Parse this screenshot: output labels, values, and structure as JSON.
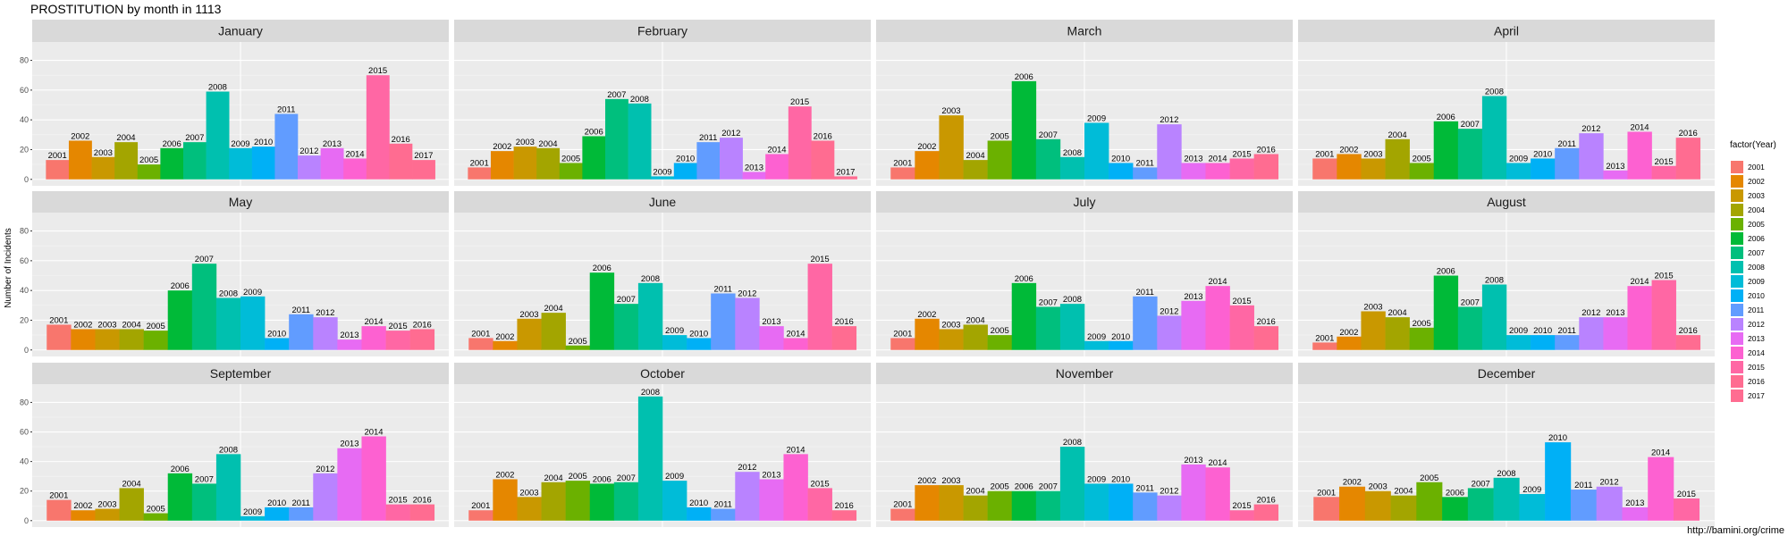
{
  "chart_data": {
    "type": "bar",
    "title": "PROSTITUTION by month in 1113",
    "xlabel": "",
    "ylabel": "Number of Incidents",
    "ylim": [
      0,
      88
    ],
    "yticks": [
      0,
      20,
      40,
      60,
      80
    ],
    "grid": true,
    "legend_title": "factor(Year)",
    "legend_position": "right",
    "caption": "http://bamini.org/crime",
    "years": [
      "2001",
      "2002",
      "2003",
      "2004",
      "2005",
      "2006",
      "2007",
      "2008",
      "2009",
      "2010",
      "2011",
      "2012",
      "2013",
      "2014",
      "2015",
      "2016",
      "2017"
    ],
    "colors": [
      "#F8766D",
      "#E58700",
      "#C99800",
      "#A3A500",
      "#6BB100",
      "#00BA38",
      "#00BF7D",
      "#00C0AF",
      "#00BCD8",
      "#00B0F6",
      "#619CFF",
      "#B983FF",
      "#E76BF3",
      "#FD61D1",
      "#FF67A4",
      "#FF6C91",
      "#FF6C91"
    ],
    "panels": [
      {
        "month": "January",
        "categories": [
          "2001",
          "2002",
          "2003",
          "2004",
          "2005",
          "2006",
          "2007",
          "2008",
          "2009",
          "2010",
          "2011",
          "2012",
          "2013",
          "2014",
          "2015",
          "2016",
          "2017"
        ],
        "values": [
          13,
          26,
          15,
          25,
          10,
          21,
          25,
          59,
          21,
          22,
          44,
          16,
          21,
          14,
          70,
          24,
          13
        ]
      },
      {
        "month": "February",
        "categories": [
          "2001",
          "2002",
          "2003",
          "2004",
          "2005",
          "2006",
          "2007",
          "2008",
          "2009",
          "2010",
          "2011",
          "2012",
          "2013",
          "2014",
          "2015",
          "2016",
          "2017"
        ],
        "values": [
          8,
          19,
          22,
          21,
          11,
          29,
          54,
          51,
          2,
          11,
          25,
          28,
          5,
          17,
          49,
          26,
          2
        ]
      },
      {
        "month": "March",
        "categories": [
          "2001",
          "2002",
          "2003",
          "2004",
          "2005",
          "2006",
          "2007",
          "2008",
          "2009",
          "2010",
          "2011",
          "2012",
          "2013",
          "2014",
          "2015",
          "2016"
        ],
        "values": [
          8,
          19,
          43,
          13,
          26,
          66,
          27,
          15,
          38,
          11,
          8,
          37,
          11,
          11,
          14,
          17
        ]
      },
      {
        "month": "April",
        "categories": [
          "2001",
          "2002",
          "2003",
          "2004",
          "2005",
          "2006",
          "2007",
          "2008",
          "2009",
          "2010",
          "2011",
          "2012",
          "2013",
          "2014",
          "2015",
          "2016"
        ],
        "values": [
          14,
          17,
          14,
          27,
          11,
          39,
          34,
          56,
          11,
          14,
          21,
          31,
          6,
          32,
          9,
          28
        ]
      },
      {
        "month": "May",
        "categories": [
          "2001",
          "2002",
          "2003",
          "2004",
          "2005",
          "2006",
          "2007",
          "2008",
          "2009",
          "2010",
          "2011",
          "2012",
          "2013",
          "2014",
          "2015",
          "2016"
        ],
        "values": [
          17,
          14,
          14,
          14,
          13,
          40,
          58,
          35,
          36,
          8,
          24,
          22,
          7,
          16,
          13,
          14
        ]
      },
      {
        "month": "June",
        "categories": [
          "2001",
          "2002",
          "2003",
          "2004",
          "2005",
          "2006",
          "2007",
          "2008",
          "2009",
          "2010",
          "2011",
          "2012",
          "2013",
          "2014",
          "2015",
          "2016"
        ],
        "values": [
          8,
          6,
          21,
          25,
          3,
          52,
          31,
          45,
          10,
          8,
          38,
          35,
          16,
          8,
          58,
          16
        ]
      },
      {
        "month": "July",
        "categories": [
          "2001",
          "2002",
          "2003",
          "2004",
          "2005",
          "2006",
          "2007",
          "2008",
          "2009",
          "2010",
          "2011",
          "2012",
          "2013",
          "2014",
          "2015",
          "2016"
        ],
        "values": [
          8,
          21,
          14,
          17,
          10,
          45,
          29,
          31,
          6,
          6,
          36,
          23,
          33,
          43,
          30,
          16
        ]
      },
      {
        "month": "August",
        "categories": [
          "2001",
          "2002",
          "2003",
          "2004",
          "2005",
          "2006",
          "2007",
          "2008",
          "2009",
          "2010",
          "2011",
          "2012",
          "2013",
          "2014",
          "2015",
          "2016"
        ],
        "values": [
          5,
          9,
          26,
          22,
          15,
          50,
          29,
          44,
          10,
          10,
          10,
          22,
          22,
          43,
          47,
          10
        ]
      },
      {
        "month": "September",
        "categories": [
          "2001",
          "2002",
          "2003",
          "2004",
          "2005",
          "2006",
          "2007",
          "2008",
          "2009",
          "2010",
          "2011",
          "2012",
          "2013",
          "2014",
          "2015",
          "2016"
        ],
        "values": [
          14,
          7,
          8,
          22,
          5,
          32,
          25,
          45,
          3,
          9,
          9,
          32,
          49,
          57,
          11,
          11
        ]
      },
      {
        "month": "October",
        "categories": [
          "2001",
          "2002",
          "2003",
          "2004",
          "2005",
          "2006",
          "2007",
          "2008",
          "2009",
          "2010",
          "2011",
          "2012",
          "2013",
          "2014",
          "2015",
          "2016"
        ],
        "values": [
          7,
          28,
          16,
          26,
          27,
          25,
          26,
          84,
          27,
          9,
          8,
          33,
          28,
          45,
          22,
          7
        ]
      },
      {
        "month": "November",
        "categories": [
          "2001",
          "2002",
          "2003",
          "2004",
          "2005",
          "2006",
          "2007",
          "2008",
          "2009",
          "2010",
          "2011",
          "2012",
          "2013",
          "2014",
          "2015",
          "2016"
        ],
        "values": [
          8,
          24,
          24,
          17,
          20,
          20,
          20,
          50,
          25,
          25,
          19,
          17,
          38,
          36,
          7,
          11
        ]
      },
      {
        "month": "December",
        "categories": [
          "2001",
          "2002",
          "2003",
          "2004",
          "2005",
          "2006",
          "2007",
          "2008",
          "2009",
          "2010",
          "2011",
          "2012",
          "2013",
          "2014",
          "2015"
        ],
        "values": [
          16,
          23,
          20,
          17,
          26,
          16,
          22,
          29,
          18,
          53,
          21,
          23,
          9,
          43,
          15
        ]
      }
    ]
  }
}
